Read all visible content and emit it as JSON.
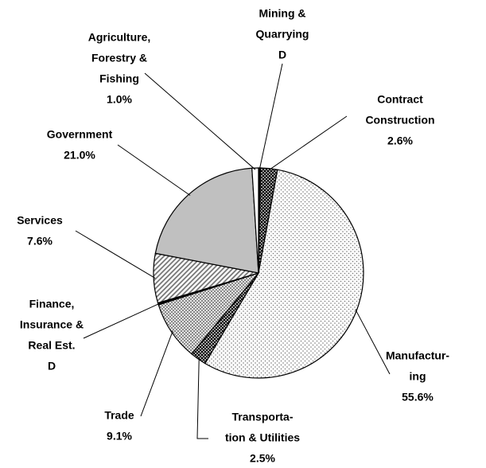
{
  "chart_data": {
    "type": "pie",
    "categories": [
      [
        "Mining &",
        "Quarrying"
      ],
      [
        "Contract",
        "Construction"
      ],
      [
        "Manufactur-",
        "ing"
      ],
      [
        "Transporta-",
        "tion & Utilities"
      ],
      [
        "Trade"
      ],
      [
        "Finance,",
        "Insurance &",
        "Real Est."
      ],
      [
        "Services"
      ],
      [
        "Government"
      ],
      [
        "Agriculture,",
        "Forestry &",
        "Fishing"
      ]
    ],
    "values": [
      0.3,
      2.6,
      55.6,
      2.5,
      9.1,
      0.3,
      7.6,
      21.0,
      1.0
    ],
    "value_labels": [
      "D",
      "2.6%",
      "55.6%",
      "2.5%",
      "9.1%",
      "D",
      "7.6%",
      "21.0%",
      "1.0%"
    ],
    "colors": [
      "#000000",
      "#5a5a5a",
      "#e8e8e8",
      "#4a4a4a",
      "#b4b4b4",
      "#000000",
      "#d8d8d8",
      "#c0c0c0",
      "#ffffff"
    ]
  }
}
